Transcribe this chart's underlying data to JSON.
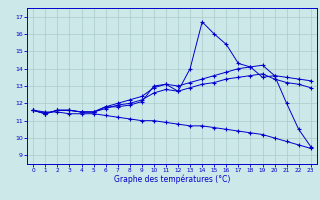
{
  "xlabel": "Graphe des températures (°C)",
  "bg_color": "#cce8e8",
  "grid_color": "#aacccc",
  "line_color": "#0000cc",
  "xlim": [
    -0.5,
    23.5
  ],
  "ylim": [
    8.5,
    17.5
  ],
  "yticks": [
    9,
    10,
    11,
    12,
    13,
    14,
    15,
    16,
    17
  ],
  "xticks": [
    0,
    1,
    2,
    3,
    4,
    5,
    6,
    7,
    8,
    9,
    10,
    11,
    12,
    13,
    14,
    15,
    16,
    17,
    18,
    19,
    20,
    21,
    22,
    23
  ],
  "line1_x": [
    0,
    1,
    2,
    3,
    4,
    5,
    6,
    7,
    8,
    9,
    10,
    11,
    12,
    13,
    14,
    15,
    16,
    17,
    18,
    19,
    20,
    21,
    22,
    23
  ],
  "line1_y": [
    11.6,
    11.4,
    11.6,
    11.6,
    11.5,
    11.5,
    11.8,
    11.8,
    11.9,
    12.1,
    13.0,
    13.1,
    12.7,
    14.0,
    16.7,
    16.0,
    15.4,
    14.3,
    14.1,
    13.5,
    13.6,
    12.0,
    10.5,
    9.5
  ],
  "line2_x": [
    0,
    1,
    2,
    3,
    4,
    5,
    6,
    7,
    8,
    9,
    10,
    11,
    12,
    13,
    14,
    15,
    16,
    17,
    18,
    19,
    20,
    21,
    22,
    23
  ],
  "line2_y": [
    11.6,
    11.4,
    11.6,
    11.6,
    11.5,
    11.5,
    11.8,
    12.0,
    12.2,
    12.4,
    12.9,
    13.1,
    13.0,
    13.2,
    13.4,
    13.6,
    13.8,
    14.0,
    14.1,
    14.2,
    13.6,
    13.5,
    13.4,
    13.3
  ],
  "line3_x": [
    0,
    1,
    2,
    3,
    4,
    5,
    6,
    7,
    8,
    9,
    10,
    11,
    12,
    13,
    14,
    15,
    16,
    17,
    18,
    19,
    20,
    21,
    22,
    23
  ],
  "line3_y": [
    11.6,
    11.4,
    11.6,
    11.6,
    11.5,
    11.5,
    11.7,
    11.9,
    12.0,
    12.2,
    12.6,
    12.8,
    12.7,
    12.9,
    13.1,
    13.2,
    13.4,
    13.5,
    13.6,
    13.7,
    13.4,
    13.2,
    13.1,
    12.9
  ],
  "line4_x": [
    0,
    1,
    2,
    3,
    4,
    5,
    6,
    7,
    8,
    9,
    10,
    11,
    12,
    13,
    14,
    15,
    16,
    17,
    18,
    19,
    20,
    21,
    22,
    23
  ],
  "line4_y": [
    11.6,
    11.5,
    11.5,
    11.4,
    11.4,
    11.4,
    11.3,
    11.2,
    11.1,
    11.0,
    11.0,
    10.9,
    10.8,
    10.7,
    10.7,
    10.6,
    10.5,
    10.4,
    10.3,
    10.2,
    10.0,
    9.8,
    9.6,
    9.4
  ]
}
